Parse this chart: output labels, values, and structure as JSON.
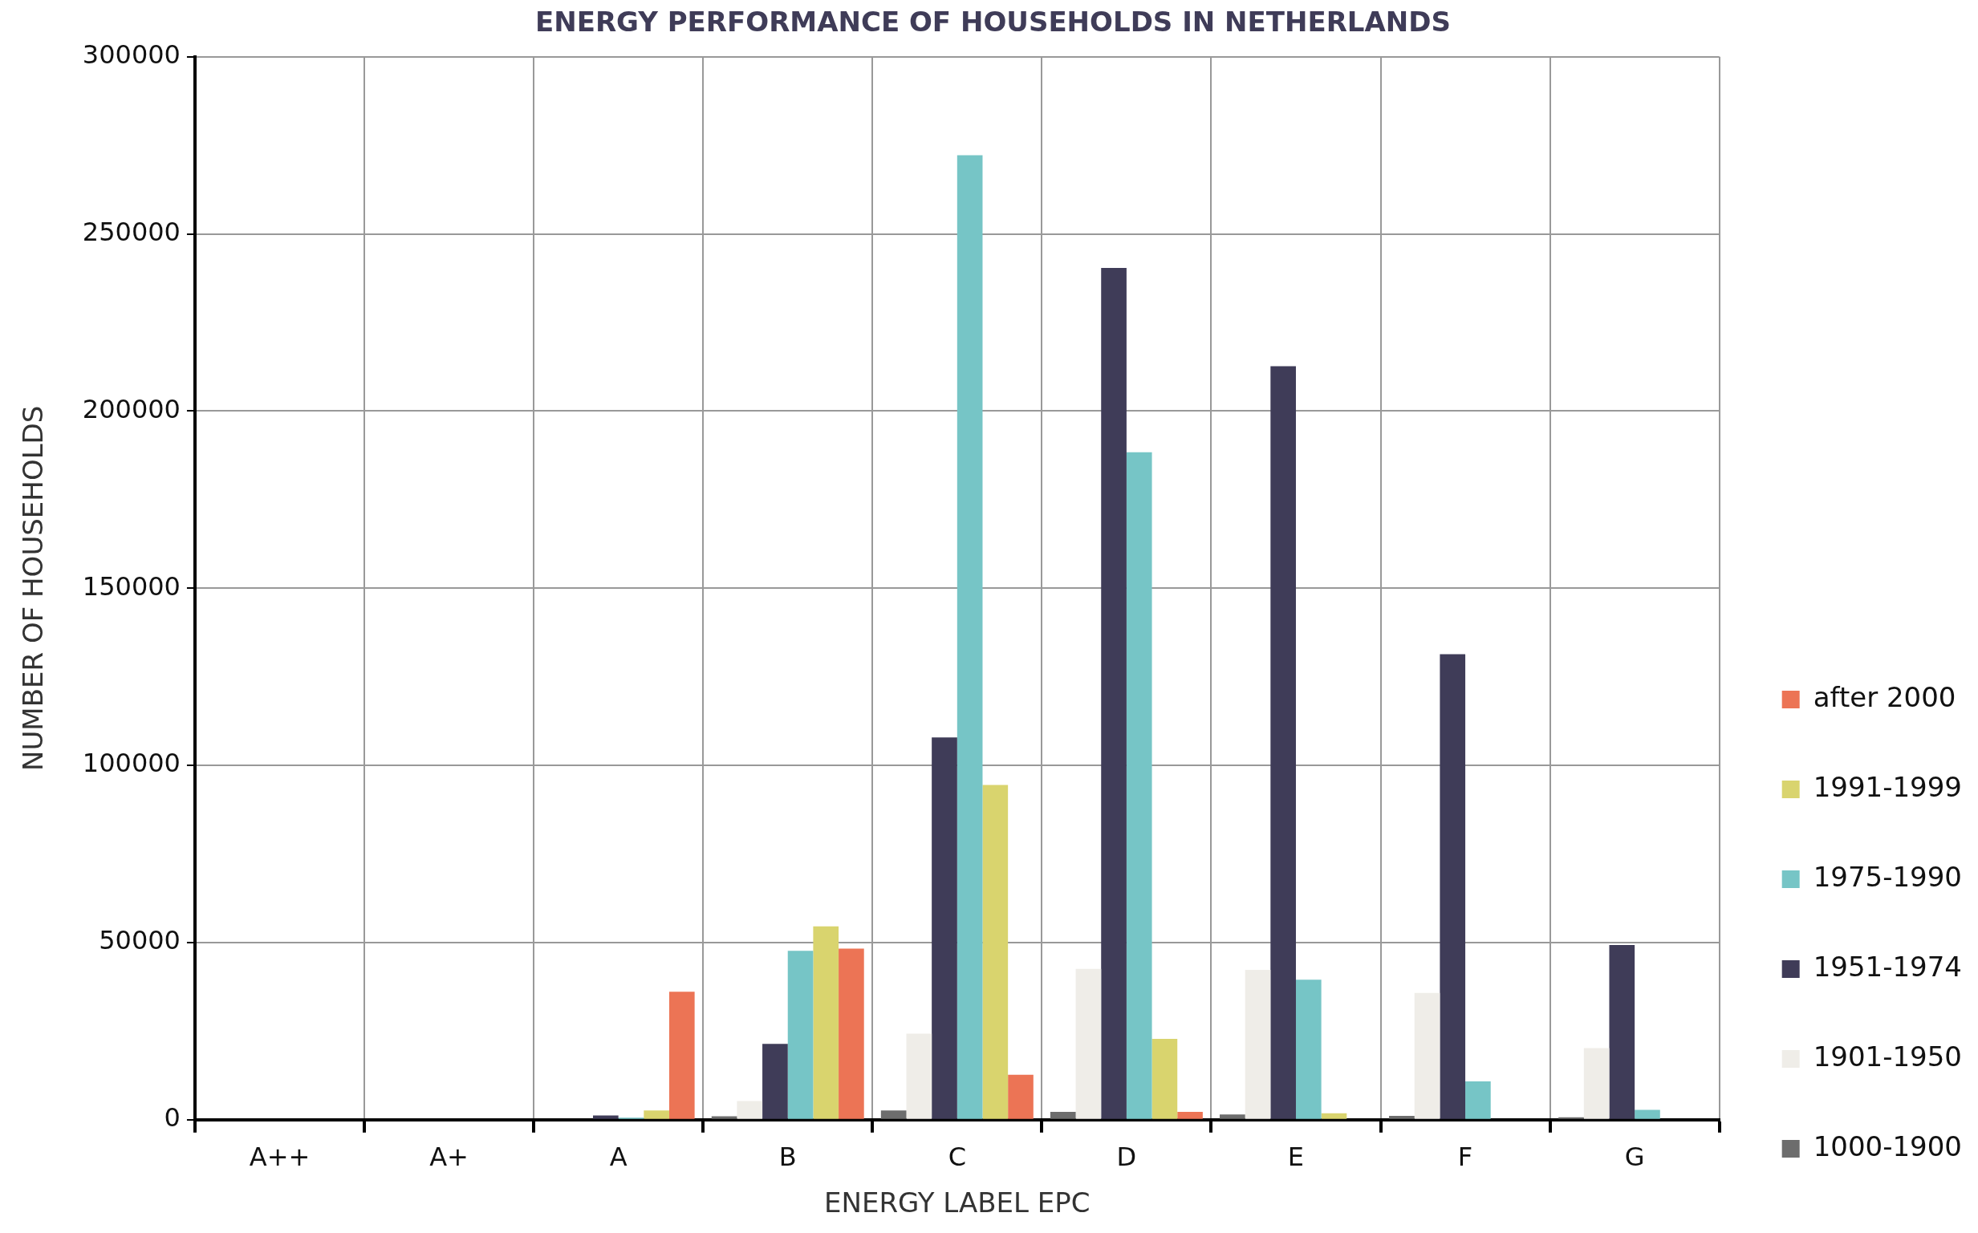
{
  "chart_data": {
    "type": "bar",
    "title": "ENERGY PERFORMANCE OF HOUSEHOLDS IN NETHERLANDS",
    "xlabel": "ENERGY LABEL EPC",
    "ylabel": "NUMBER OF HOUSEHOLDS",
    "categories": [
      "A++",
      "A+",
      "A",
      "B",
      "C",
      "D",
      "E",
      "F",
      "G"
    ],
    "series": [
      {
        "name": "1000-1900",
        "color": "#6d6d6d",
        "values": [
          0,
          0,
          0,
          1000,
          2600,
          2200,
          1500,
          1100,
          700
        ]
      },
      {
        "name": "1901-1950",
        "color": "#efede8",
        "values": [
          0,
          0,
          0,
          5300,
          24300,
          42600,
          42300,
          35800,
          20200
        ]
      },
      {
        "name": "1951-1974",
        "color": "#3f3c58",
        "values": [
          0,
          0,
          1200,
          21400,
          107900,
          240400,
          212700,
          131400,
          49300
        ]
      },
      {
        "name": "1975-1990",
        "color": "#76c5c6",
        "values": [
          0,
          0,
          600,
          47700,
          272200,
          188400,
          39500,
          10800,
          2800
        ]
      },
      {
        "name": "1991-1999",
        "color": "#d9d46e",
        "values": [
          0,
          0,
          2600,
          54600,
          94500,
          22800,
          1800,
          0,
          0
        ]
      },
      {
        "name": "after 2000",
        "color": "#ec7455",
        "values": [
          0,
          0,
          36100,
          48300,
          12700,
          2200,
          0,
          0,
          0
        ]
      }
    ],
    "ylim": [
      0,
      300000
    ],
    "yticks": [
      0,
      50000,
      100000,
      150000,
      200000,
      250000,
      300000
    ],
    "grid": true,
    "legend": "right"
  }
}
